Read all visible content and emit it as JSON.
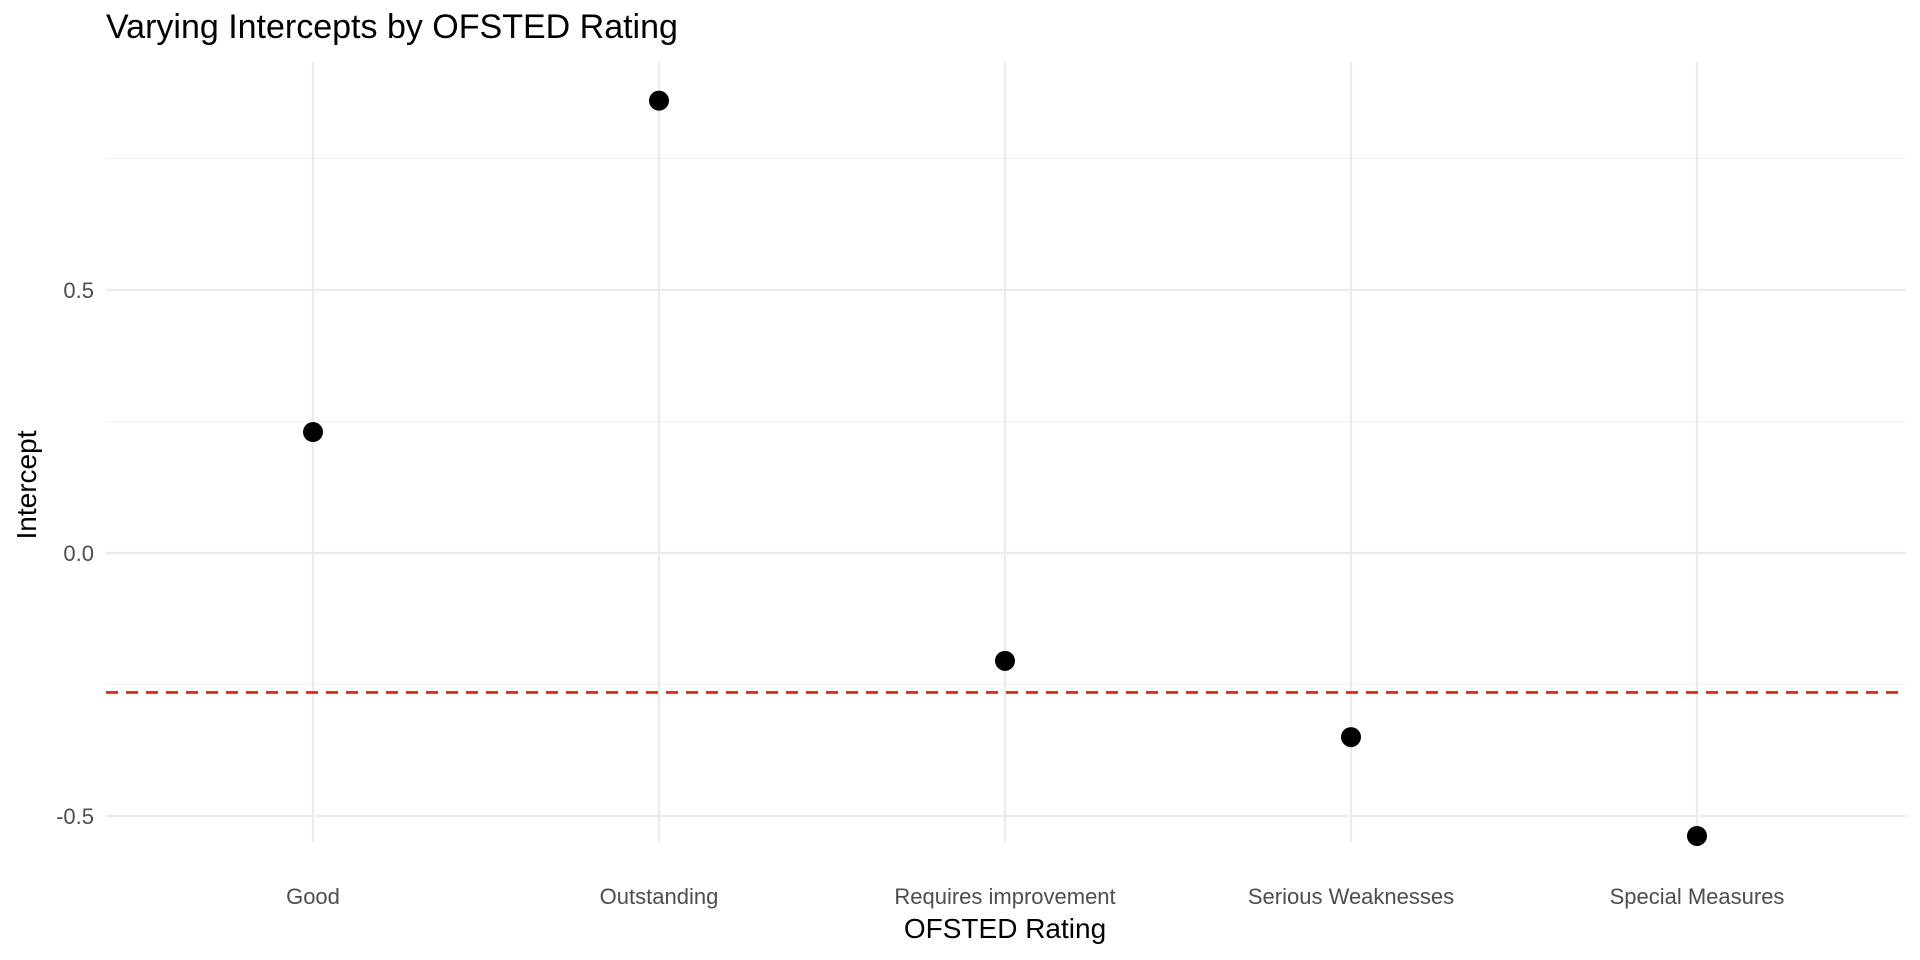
{
  "chart_data": {
    "type": "scatter",
    "title": "Varying Intercepts by OFSTED Rating",
    "xlabel": "OFSTED Rating",
    "ylabel": "Intercept",
    "categories": [
      "Good",
      "Outstanding",
      "Requires improvement",
      "Serious Weaknesses",
      "Special Measures"
    ],
    "values": [
      0.23,
      0.86,
      -0.205,
      -0.35,
      -0.538
    ],
    "y_ticks": [
      -0.5,
      0.0,
      0.5
    ],
    "y_tick_labels": [
      "-0.5",
      "0.0",
      "0.5"
    ],
    "ylim": [
      -0.58,
      0.9
    ],
    "reference_line": {
      "value": -0.265,
      "style": "dashed",
      "color": "#e41a1c"
    },
    "grid": true,
    "point_color": "#000000"
  }
}
